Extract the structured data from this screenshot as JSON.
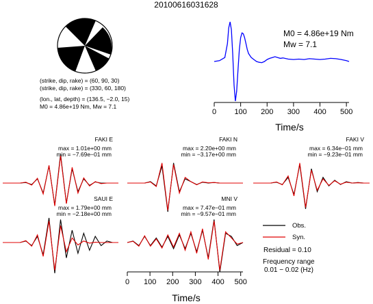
{
  "figure": {
    "title": "20100616031628",
    "mechanism": {
      "line1": "(strike, dip, rake) = (60, 90, 30)",
      "line2": "(strike, dip, rake) = (330, 60, 180)",
      "line3": "(lon., lat, depth) = (136.5, −2.0, 15)",
      "line4": "M0 = 4.86e+19 Nm, Mw = 7.1"
    },
    "stf_labels": {
      "mo": "M0 = 4.86e+19 Nm",
      "mw": "Mw = 7.1"
    },
    "time_label": "Time/s",
    "legend": {
      "obs": "Obs.",
      "syn": "Syn.",
      "residual": "Residual = 0.10",
      "freq_title": "Frequency range",
      "freq_value": "0.01 − 0.02 (Hz)"
    },
    "colors": {
      "obs": "#000000",
      "syn": "#e00000",
      "stf": "#0000ff"
    }
  },
  "chart_data": [
    {
      "type": "line",
      "name_on_chart": "",
      "xlabel": "Time/s",
      "xlim": [
        0,
        510
      ],
      "xticks": [
        0,
        100,
        200,
        300,
        400,
        500
      ],
      "x": [
        0,
        20,
        40,
        50,
        55,
        60,
        65,
        70,
        75,
        80,
        85,
        90,
        95,
        100,
        105,
        110,
        115,
        120,
        125,
        130,
        140,
        150,
        160,
        170,
        180,
        190,
        200,
        210,
        220,
        230,
        240,
        250,
        260,
        280,
        300,
        320,
        340,
        360,
        380,
        400,
        420,
        440,
        460,
        480,
        500,
        510
      ],
      "values": [
        0,
        0.02,
        0.1,
        0.45,
        0.85,
        1.0,
        0.8,
        0.2,
        -0.6,
        -1.0,
        -0.75,
        -0.2,
        0.3,
        0.6,
        0.72,
        0.7,
        0.6,
        0.45,
        0.3,
        0.2,
        0.1,
        0.05,
        0.0,
        -0.02,
        -0.03,
        0.0,
        0.05,
        0.08,
        0.1,
        0.12,
        0.1,
        0.08,
        0.09,
        0.06,
        0.05,
        0.06,
        0.05,
        0.07,
        0.06,
        0.05,
        0.06,
        0.08,
        0.07,
        0.05,
        0.02,
        0.0
      ]
    },
    {
      "type": "line",
      "station": "FAKI E",
      "max_label": "max = 1.01e+00 mm",
      "min_label": "min = −7.69e−01 mm",
      "series": [
        {
          "name": "Obs.",
          "values": [
            0,
            0,
            0,
            0,
            0.02,
            -0.05,
            0.15,
            -0.35,
            0.6,
            -0.77,
            1.01,
            -0.7,
            0.5,
            -0.3,
            0.15,
            -0.08,
            0.04,
            0,
            0,
            0,
            0
          ]
        },
        {
          "name": "Syn.",
          "values": [
            0,
            0,
            0,
            0,
            0.03,
            -0.07,
            0.17,
            -0.38,
            0.62,
            -0.8,
            0.95,
            -0.72,
            0.55,
            -0.35,
            0.18,
            -0.1,
            0.05,
            -0.02,
            0,
            0,
            0
          ]
        }
      ]
    },
    {
      "type": "line",
      "station": "FAKI N",
      "max_label": "max = 2.20e+00 mm",
      "min_label": "min = −3.17e+00 mm",
      "series": [
        {
          "name": "Obs.",
          "values": [
            0,
            0,
            0,
            0,
            0.05,
            -0.1,
            0.6,
            -1.0,
            0.7,
            -0.3,
            0.15,
            0.05,
            -0.05,
            0.03,
            0,
            0.02,
            0,
            0,
            0,
            0,
            0
          ]
        },
        {
          "name": "Syn.",
          "values": [
            0,
            0,
            0,
            0,
            0.04,
            -0.12,
            0.7,
            -0.95,
            0.65,
            -0.35,
            0.2,
            0.05,
            -0.06,
            0.04,
            0.01,
            0.02,
            0,
            0,
            0,
            0,
            0
          ]
        }
      ]
    },
    {
      "type": "line",
      "station": "FAKI V",
      "max_label": "max = 6.34e−01 mm",
      "min_label": "min = −9.23e−01 mm",
      "series": [
        {
          "name": "Obs.",
          "values": [
            0,
            0,
            0,
            0,
            0.03,
            -0.05,
            0.2,
            -0.4,
            0.65,
            -0.9,
            0.5,
            -0.3,
            0.2,
            -0.1,
            0.1,
            -0.05,
            0.05,
            0,
            0.02,
            0,
            0
          ]
        },
        {
          "name": "Syn.",
          "values": [
            0,
            0,
            0,
            0,
            0.04,
            -0.06,
            0.25,
            -0.45,
            0.7,
            -0.85,
            0.45,
            -0.25,
            0.15,
            -0.08,
            0.08,
            -0.04,
            0.03,
            0,
            0.01,
            0,
            0
          ]
        }
      ]
    },
    {
      "type": "line",
      "station": "SAUI E",
      "max_label": "max = 1.79e+00 mm",
      "min_label": "min = −2.18e+00 mm",
      "series": [
        {
          "name": "Obs.",
          "values": [
            0,
            0,
            0,
            0,
            0.05,
            -0.1,
            0.2,
            -0.4,
            0.8,
            -1.0,
            0.75,
            -0.5,
            0.4,
            -0.35,
            0.3,
            -0.25,
            0.2,
            -0.1,
            0.05,
            0,
            0
          ]
        },
        {
          "name": "Syn.",
          "values": [
            0,
            0,
            0,
            0,
            0.06,
            -0.12,
            0.25,
            -0.45,
            0.7,
            -0.9,
            0.55,
            -0.3,
            0.15,
            -0.08,
            0.05,
            -0.02,
            0.01,
            0,
            0,
            0,
            0
          ]
        }
      ]
    },
    {
      "type": "line",
      "station": "MNI V",
      "max_label": "max = 7.47e−01 mm",
      "min_label": "min = −9.57e−01 mm",
      "xlabel": "Time/s",
      "xlim": [
        0,
        510
      ],
      "xticks": [
        0,
        100,
        200,
        300,
        400,
        500
      ],
      "series": [
        {
          "name": "Obs.",
          "values": [
            0,
            0.05,
            -0.1,
            0.2,
            -0.1,
            0.15,
            -0.15,
            0.2,
            -0.2,
            0.25,
            -0.2,
            0.3,
            -0.3,
            0.4,
            -0.5,
            0.75,
            -0.96,
            0.3,
            0.2,
            -0.1,
            0
          ]
        },
        {
          "name": "Syn.",
          "values": [
            0,
            0.04,
            -0.12,
            0.22,
            -0.12,
            0.12,
            -0.18,
            0.25,
            -0.15,
            0.3,
            -0.25,
            0.35,
            -0.35,
            0.45,
            -0.55,
            0.7,
            -0.9,
            0.35,
            0.15,
            -0.05,
            0
          ]
        }
      ]
    }
  ]
}
